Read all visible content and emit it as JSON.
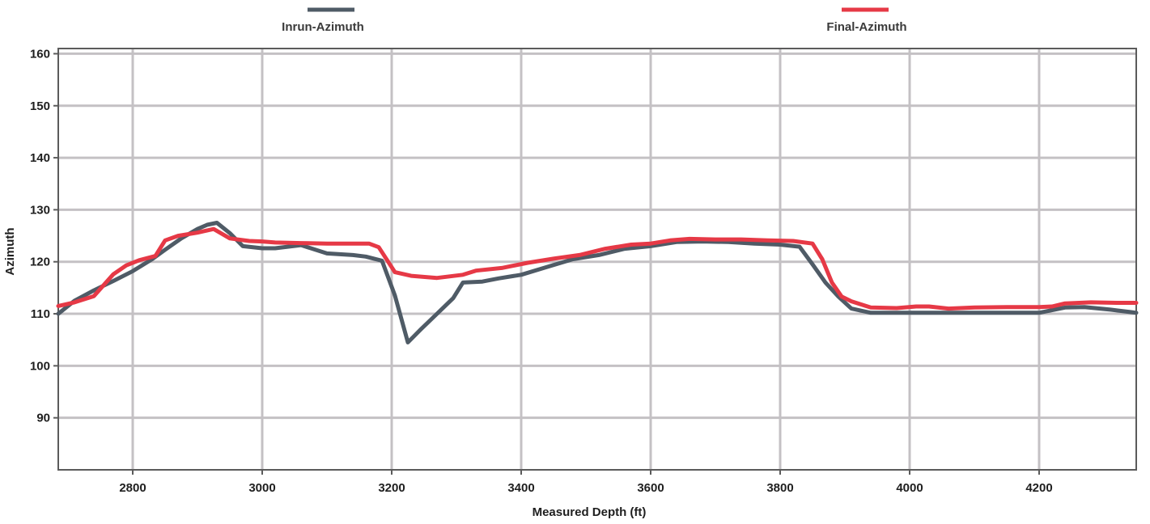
{
  "chart_data": {
    "type": "line",
    "title": "",
    "xlabel": "Measured Depth (ft)",
    "ylabel": "Azimuth",
    "xlim": [
      2685,
      4350
    ],
    "ylim": [
      80,
      161
    ],
    "xticks": [
      2800,
      3000,
      3200,
      3400,
      3600,
      3800,
      4000,
      4200
    ],
    "yticks": [
      90,
      100,
      110,
      120,
      130,
      140,
      150,
      160
    ],
    "grid": true,
    "legend_position": "top",
    "series": [
      {
        "name": "Inrun-Azimuth",
        "color": "#4f5b66",
        "x": [
          2685,
          2710,
          2740,
          2770,
          2800,
          2830,
          2850,
          2875,
          2900,
          2915,
          2930,
          2950,
          2970,
          3000,
          3020,
          3060,
          3100,
          3140,
          3160,
          3185,
          3205,
          3225,
          3245,
          3270,
          3295,
          3310,
          3340,
          3365,
          3400,
          3440,
          3480,
          3520,
          3560,
          3600,
          3640,
          3680,
          3720,
          3760,
          3800,
          3830,
          3850,
          3870,
          3890,
          3910,
          3940,
          3980,
          4020,
          4060,
          4100,
          4150,
          4200,
          4240,
          4270,
          4310,
          4350
        ],
        "y": [
          110.0,
          112.5,
          114.5,
          116.3,
          118.2,
          120.5,
          122.3,
          124.5,
          126.3,
          127.1,
          127.5,
          125.5,
          123.0,
          122.6,
          122.6,
          123.2,
          121.6,
          121.3,
          121.0,
          120.2,
          113.5,
          104.5,
          107.0,
          110.0,
          113.0,
          116.0,
          116.2,
          116.8,
          117.5,
          119.0,
          120.5,
          121.3,
          122.5,
          123.0,
          123.8,
          123.9,
          123.8,
          123.5,
          123.3,
          122.9,
          119.5,
          116.0,
          113.3,
          111.0,
          110.2,
          110.2,
          110.2,
          110.2,
          110.2,
          110.2,
          110.2,
          111.2,
          111.3,
          110.8,
          110.2
        ]
      },
      {
        "name": "Final-Azimuth",
        "color": "#e63946",
        "x": [
          2685,
          2710,
          2740,
          2770,
          2790,
          2810,
          2835,
          2850,
          2870,
          2900,
          2925,
          2950,
          2980,
          3000,
          3020,
          3060,
          3100,
          3140,
          3165,
          3180,
          3205,
          3230,
          3270,
          3310,
          3330,
          3370,
          3410,
          3450,
          3490,
          3530,
          3570,
          3600,
          3630,
          3660,
          3700,
          3740,
          3780,
          3820,
          3850,
          3865,
          3880,
          3895,
          3910,
          3940,
          3980,
          4010,
          4030,
          4060,
          4100,
          4150,
          4200,
          4220,
          4240,
          4280,
          4320,
          4350
        ],
        "y": [
          111.5,
          112.2,
          113.4,
          117.6,
          119.3,
          120.3,
          121.1,
          124.1,
          125.0,
          125.6,
          126.3,
          124.5,
          124.0,
          123.9,
          123.7,
          123.6,
          123.5,
          123.5,
          123.5,
          122.8,
          118.0,
          117.3,
          116.9,
          117.5,
          118.3,
          118.8,
          119.8,
          120.6,
          121.3,
          122.5,
          123.3,
          123.5,
          124.1,
          124.4,
          124.3,
          124.3,
          124.1,
          124.0,
          123.5,
          120.5,
          116.0,
          113.3,
          112.4,
          111.2,
          111.1,
          111.4,
          111.4,
          111.0,
          111.2,
          111.3,
          111.3,
          111.4,
          112.0,
          112.2,
          112.1,
          112.1
        ]
      }
    ]
  }
}
